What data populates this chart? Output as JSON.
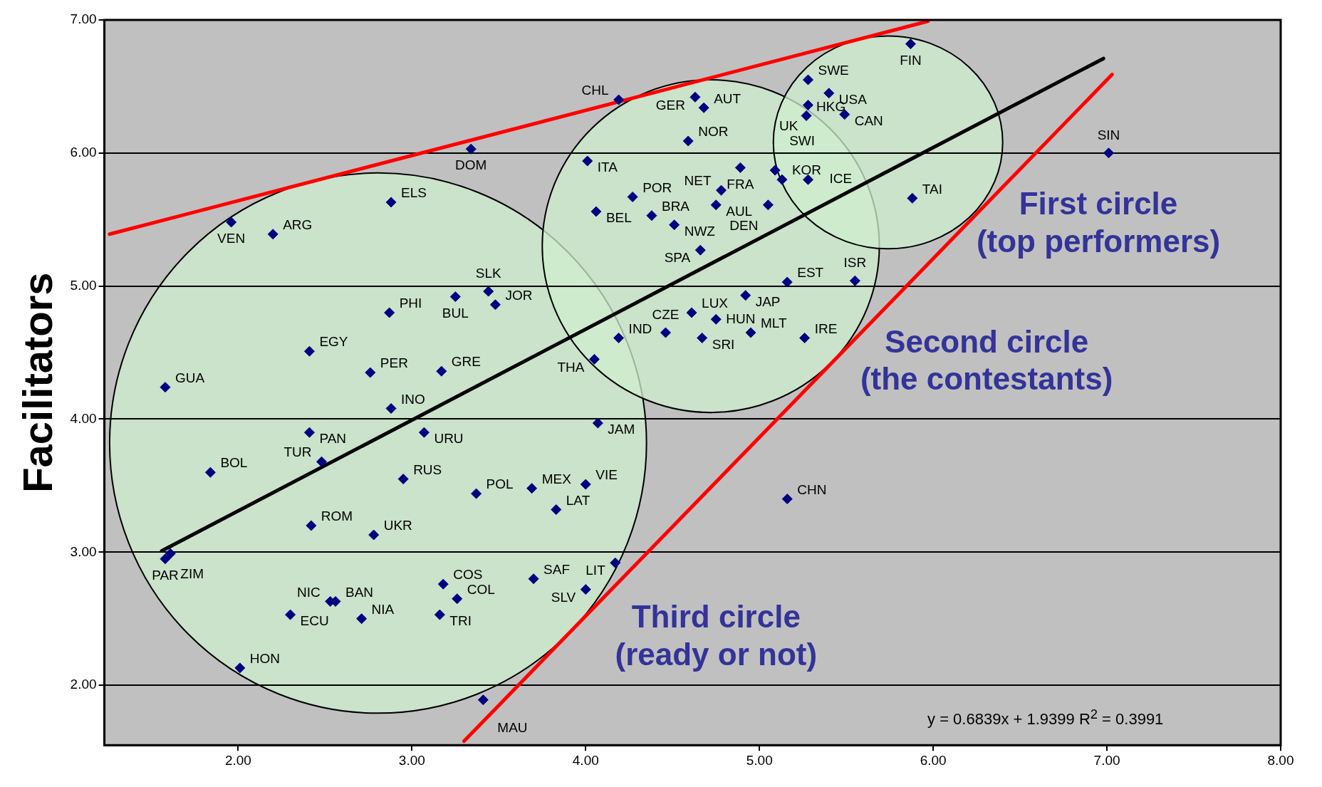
{
  "chart_data": {
    "type": "scatter",
    "ylabel": "Facilitators",
    "xlim": [
      1.23,
      8
    ],
    "ylim": [
      1.55,
      7
    ],
    "xticks": [
      {
        "value": 2,
        "label": "2.00"
      },
      {
        "value": 3,
        "label": "3.00"
      },
      {
        "value": 4,
        "label": "4.00"
      },
      {
        "value": 5,
        "label": "5.00"
      },
      {
        "value": 6,
        "label": "6.00"
      },
      {
        "value": 7,
        "label": "7.00"
      },
      {
        "value": 8,
        "label": "8.00"
      }
    ],
    "yticks": [
      {
        "value": 2,
        "label": "2.00"
      },
      {
        "value": 3,
        "label": "3.00"
      },
      {
        "value": 4,
        "label": "4.00"
      },
      {
        "value": 5,
        "label": "5.00"
      },
      {
        "value": 6,
        "label": "6.00"
      },
      {
        "value": 7,
        "label": "7.00"
      }
    ],
    "grid": "y",
    "legend": false,
    "marker": "diamond",
    "series": [
      {
        "color": "#000080",
        "x": [
          5.87,
          5.28,
          5.4,
          5.28,
          5.27,
          5.49,
          4.19,
          4.63,
          4.68,
          4.59,
          3.34,
          4.01,
          4.89,
          5.09,
          5.13,
          5.28,
          7.01,
          4.27,
          4.78,
          4.75,
          5.05,
          4.06,
          4.38,
          4.51,
          5.88,
          4.66,
          2.88,
          1.96,
          2.2,
          5.16,
          5.55,
          3.25,
          3.44,
          3.48,
          4.92,
          4.61,
          2.87,
          4.75,
          4.19,
          4.46,
          4.67,
          4.95,
          5.26,
          2.41,
          4.05,
          2.76,
          3.17,
          1.58,
          2.88,
          4.07,
          2.41,
          3.07,
          2.48,
          1.84,
          2.95,
          3.69,
          4.0,
          3.37,
          5.16,
          3.83,
          2.42,
          2.78,
          1.61,
          1.58,
          4.17,
          3.7,
          3.18,
          4.0,
          3.26,
          2.53,
          2.56,
          2.3,
          2.71,
          3.16,
          2.01,
          3.41
        ],
        "values": [
          6.82,
          6.55,
          6.45,
          6.36,
          6.28,
          6.29,
          6.4,
          6.42,
          6.34,
          6.09,
          6.03,
          5.94,
          5.89,
          5.87,
          5.8,
          5.8,
          6.0,
          5.67,
          5.72,
          5.61,
          5.61,
          5.56,
          5.53,
          5.46,
          5.66,
          5.27,
          5.63,
          5.48,
          5.39,
          5.03,
          5.04,
          4.92,
          4.96,
          4.86,
          4.93,
          4.8,
          4.8,
          4.75,
          4.61,
          4.65,
          4.61,
          4.65,
          4.61,
          4.51,
          4.45,
          4.35,
          4.36,
          4.24,
          4.08,
          3.97,
          3.9,
          3.9,
          3.68,
          3.6,
          3.55,
          3.48,
          3.51,
          3.44,
          3.4,
          3.32,
          3.2,
          3.13,
          2.99,
          2.95,
          2.92,
          2.8,
          2.76,
          2.72,
          2.65,
          2.63,
          2.63,
          2.53,
          2.5,
          2.53,
          2.13,
          1.89
        ]
      },
      {
        "type": "line",
        "marker": "none",
        "color": "#ff0000",
        "x": [
          1.26,
          5.97
        ],
        "values": [
          5.39,
          6.99
        ]
      },
      {
        "type": "line",
        "marker": "none",
        "color": "#ff0000",
        "x": [
          3.3,
          7.03
        ],
        "values": [
          1.58,
          6.59
        ]
      },
      {
        "type": "line",
        "marker": "none",
        "color": "#000000",
        "x": [
          1.56,
          6.98
        ],
        "values": [
          3.01,
          6.71
        ]
      }
    ],
    "annotations": [
      {
        "text": "FIN",
        "x": 5.87,
        "y": 6.82
      },
      {
        "text": "SWE",
        "x": 5.28,
        "y": 6.55
      },
      {
        "text": "USA",
        "x": 5.4,
        "y": 6.45
      },
      {
        "text": "UK",
        "x": 5.28,
        "y": 6.36
      },
      {
        "text": "HKG",
        "x": 5.27,
        "y": 6.28
      },
      {
        "text": "CAN",
        "x": 5.49,
        "y": 6.29
      },
      {
        "text": "CHL",
        "x": 4.19,
        "y": 6.4
      },
      {
        "text": "GER",
        "x": 4.63,
        "y": 6.42
      },
      {
        "text": "AUT",
        "x": 4.68,
        "y": 6.34
      },
      {
        "text": "NOR",
        "x": 4.59,
        "y": 6.09
      },
      {
        "text": "DOM",
        "x": 3.34,
        "y": 6.03
      },
      {
        "text": "ITA",
        "x": 4.01,
        "y": 5.94
      },
      {
        "text": "FRA",
        "x": 4.89,
        "y": 5.89
      },
      {
        "text": "SWI",
        "x": 5.09,
        "y": 5.87
      },
      {
        "text": "KOR",
        "x": 5.13,
        "y": 5.8
      },
      {
        "text": "ICE",
        "x": 5.28,
        "y": 5.8
      },
      {
        "text": "SIN",
        "x": 7.01,
        "y": 6.0
      },
      {
        "text": "POR",
        "x": 4.27,
        "y": 5.67
      },
      {
        "text": "NET",
        "x": 4.78,
        "y": 5.72
      },
      {
        "text": "AUL",
        "x": 4.75,
        "y": 5.61
      },
      {
        "text": "DEN",
        "x": 5.05,
        "y": 5.61
      },
      {
        "text": "BEL",
        "x": 4.06,
        "y": 5.56
      },
      {
        "text": "BRA",
        "x": 4.38,
        "y": 5.53
      },
      {
        "text": "NWZ",
        "x": 4.51,
        "y": 5.46
      },
      {
        "text": "TAI",
        "x": 5.88,
        "y": 5.66
      },
      {
        "text": "SPA",
        "x": 4.66,
        "y": 5.27
      },
      {
        "text": "ELS",
        "x": 2.88,
        "y": 5.63
      },
      {
        "text": "VEN",
        "x": 1.96,
        "y": 5.48
      },
      {
        "text": "ARG",
        "x": 2.2,
        "y": 5.39
      },
      {
        "text": "EST",
        "x": 5.16,
        "y": 5.03
      },
      {
        "text": "ISR",
        "x": 5.55,
        "y": 5.04
      },
      {
        "text": "BUL",
        "x": 3.25,
        "y": 4.92
      },
      {
        "text": "SLK",
        "x": 3.44,
        "y": 4.96
      },
      {
        "text": "JOR",
        "x": 3.48,
        "y": 4.86
      },
      {
        "text": "JAP",
        "x": 4.92,
        "y": 4.93
      },
      {
        "text": "LUX",
        "x": 4.61,
        "y": 4.8
      },
      {
        "text": "PHI",
        "x": 2.87,
        "y": 4.8
      },
      {
        "text": "HUN",
        "x": 4.75,
        "y": 4.75
      },
      {
        "text": "IND",
        "x": 4.19,
        "y": 4.61
      },
      {
        "text": "CZE",
        "x": 4.46,
        "y": 4.65
      },
      {
        "text": "SRI",
        "x": 4.67,
        "y": 4.61
      },
      {
        "text": "MLT",
        "x": 4.95,
        "y": 4.65
      },
      {
        "text": "IRE",
        "x": 5.26,
        "y": 4.61
      },
      {
        "text": "EGY",
        "x": 2.41,
        "y": 4.51
      },
      {
        "text": "THA",
        "x": 4.05,
        "y": 4.45
      },
      {
        "text": "PER",
        "x": 2.76,
        "y": 4.35
      },
      {
        "text": "GRE",
        "x": 3.17,
        "y": 4.36
      },
      {
        "text": "GUA",
        "x": 1.58,
        "y": 4.24
      },
      {
        "text": "INO",
        "x": 2.88,
        "y": 4.08
      },
      {
        "text": "JAM",
        "x": 4.07,
        "y": 3.97
      },
      {
        "text": "PAN",
        "x": 2.41,
        "y": 3.9
      },
      {
        "text": "URU",
        "x": 3.07,
        "y": 3.9
      },
      {
        "text": "TUR",
        "x": 2.48,
        "y": 3.68
      },
      {
        "text": "BOL",
        "x": 1.84,
        "y": 3.6
      },
      {
        "text": "RUS",
        "x": 2.95,
        "y": 3.55
      },
      {
        "text": "MEX",
        "x": 3.69,
        "y": 3.48
      },
      {
        "text": "VIE",
        "x": 4.0,
        "y": 3.51
      },
      {
        "text": "POL",
        "x": 3.37,
        "y": 3.44
      },
      {
        "text": "CHN",
        "x": 5.16,
        "y": 3.4
      },
      {
        "text": "LAT",
        "x": 3.83,
        "y": 3.32
      },
      {
        "text": "ROM",
        "x": 2.42,
        "y": 3.2
      },
      {
        "text": "UKR",
        "x": 2.78,
        "y": 3.13
      },
      {
        "text": "ZIM",
        "x": 1.61,
        "y": 2.99
      },
      {
        "text": "PAR",
        "x": 1.58,
        "y": 2.95
      },
      {
        "text": "LIT",
        "x": 4.17,
        "y": 2.92
      },
      {
        "text": "SAF",
        "x": 3.7,
        "y": 2.8
      },
      {
        "text": "COS",
        "x": 3.18,
        "y": 2.76
      },
      {
        "text": "SLV",
        "x": 4.0,
        "y": 2.72
      },
      {
        "text": "COL",
        "x": 3.26,
        "y": 2.65
      },
      {
        "text": "NIC",
        "x": 2.53,
        "y": 2.63
      },
      {
        "text": "BAN",
        "x": 2.56,
        "y": 2.63
      },
      {
        "text": "ECU",
        "x": 2.3,
        "y": 2.53
      },
      {
        "text": "NIA",
        "x": 2.71,
        "y": 2.5
      },
      {
        "text": "TRI",
        "x": 3.16,
        "y": 2.53
      },
      {
        "text": "HON",
        "x": 2.01,
        "y": 2.13
      },
      {
        "text": "MAU",
        "x": 3.41,
        "y": 1.89
      },
      "First circle\n(top performers)",
      "Second circle\n(the contestants)",
      "Third circle\n(ready or not)",
      "y = 0.6839x + 1.9399     R$^{2}$ = 0.3991"
    ]
  }
}
